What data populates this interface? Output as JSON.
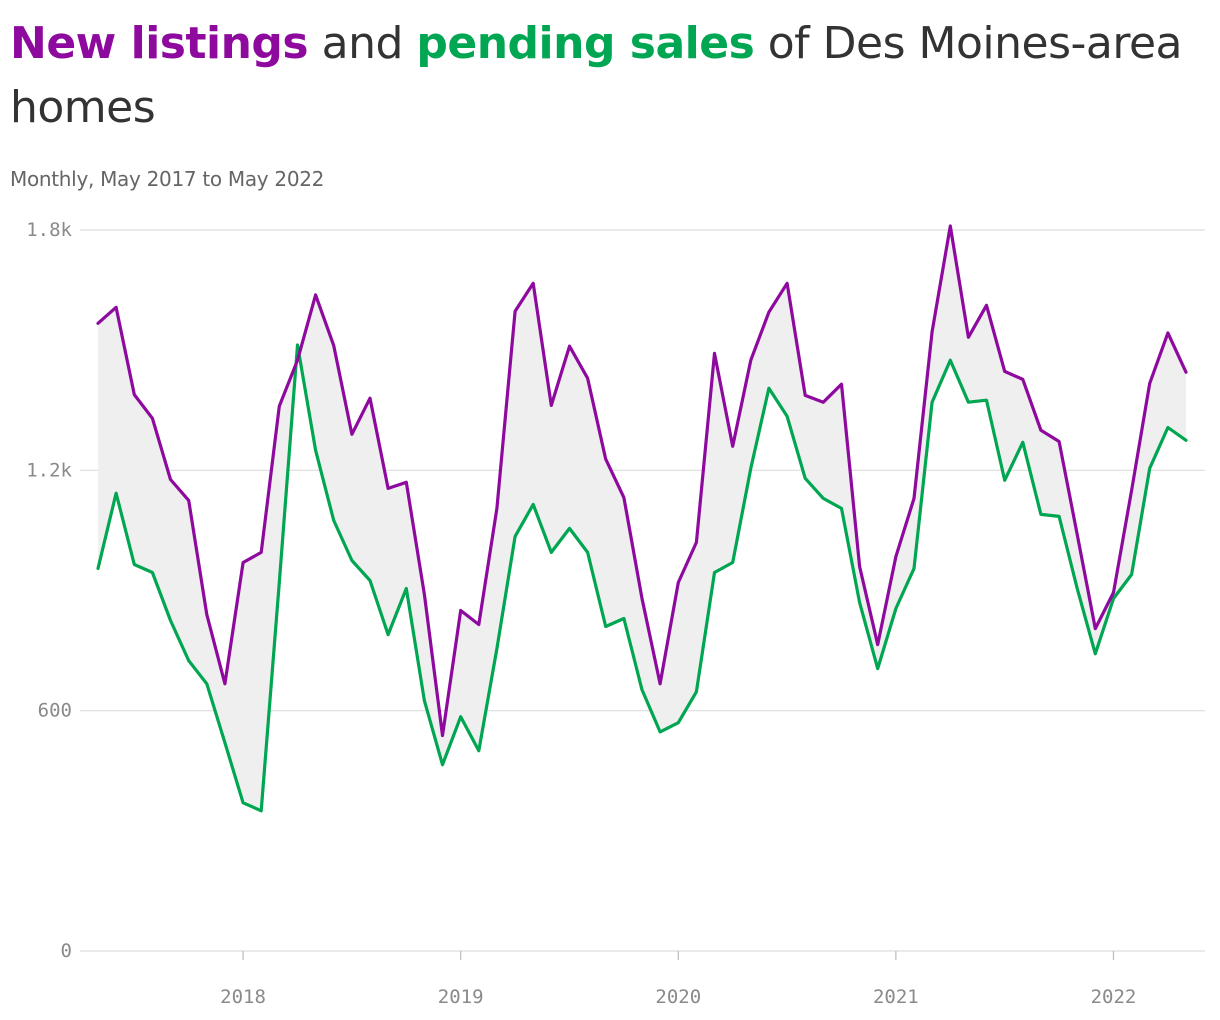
{
  "title": {
    "part1": "New listings",
    "part2": " and ",
    "part3": "pending sales",
    "part4": " of Des Moines-area homes"
  },
  "subtitle": "Monthly, May 2017 to May 2022",
  "colors": {
    "new_listings": "#8e0a9e",
    "pending_sales": "#00a651",
    "fill_between": "#efefef",
    "grid": "#dddddd",
    "text": "#333333"
  },
  "chart_data": {
    "type": "line",
    "title": "New listings and pending sales of Des Moines-area homes",
    "subtitle": "Monthly, May 2017 to May 2022",
    "xlabel": "",
    "ylabel": "",
    "ylim": [
      0,
      1800
    ],
    "yticks": [
      {
        "value": 0,
        "label": "0"
      },
      {
        "value": 600,
        "label": "600"
      },
      {
        "value": 1200,
        "label": "1.2k"
      },
      {
        "value": 1800,
        "label": "1.8k"
      }
    ],
    "xticks": [
      {
        "date": "2018-01",
        "label": "2018"
      },
      {
        "date": "2019-01",
        "label": "2019"
      },
      {
        "date": "2020-01",
        "label": "2020"
      },
      {
        "date": "2021-01",
        "label": "2021"
      },
      {
        "date": "2022-01",
        "label": "2022"
      }
    ],
    "grid": true,
    "legend": "in title",
    "x": [
      "2017-05",
      "2017-06",
      "2017-07",
      "2017-08",
      "2017-09",
      "2017-10",
      "2017-11",
      "2017-12",
      "2018-01",
      "2018-02",
      "2018-03",
      "2018-04",
      "2018-05",
      "2018-06",
      "2018-07",
      "2018-08",
      "2018-09",
      "2018-10",
      "2018-11",
      "2018-12",
      "2019-01",
      "2019-02",
      "2019-03",
      "2019-04",
      "2019-05",
      "2019-06",
      "2019-07",
      "2019-08",
      "2019-09",
      "2019-10",
      "2019-11",
      "2019-12",
      "2020-01",
      "2020-02",
      "2020-03",
      "2020-04",
      "2020-05",
      "2020-06",
      "2020-07",
      "2020-08",
      "2020-09",
      "2020-10",
      "2020-11",
      "2020-12",
      "2021-01",
      "2021-02",
      "2021-03",
      "2021-04",
      "2021-05",
      "2021-06",
      "2021-07",
      "2021-08",
      "2021-09",
      "2021-10",
      "2021-11",
      "2021-12",
      "2022-01",
      "2022-02",
      "2022-03",
      "2022-04",
      "2022-05"
    ],
    "series": [
      {
        "name": "New listings",
        "values": [
          1567,
          1607,
          1389,
          1330,
          1177,
          1125,
          840,
          667,
          970,
          995,
          1360,
          1475,
          1638,
          1512,
          1290,
          1380,
          1155,
          1170,
          890,
          538,
          850,
          815,
          1105,
          1597,
          1667,
          1362,
          1510,
          1430,
          1228,
          1132,
          880,
          667,
          920,
          1020,
          1492,
          1260,
          1475,
          1595,
          1667,
          1387,
          1370,
          1415,
          960,
          765,
          985,
          1130,
          1546,
          1810,
          1532,
          1612,
          1447,
          1427,
          1300,
          1272,
          1040,
          805,
          895,
          1150,
          1417,
          1543,
          1445
        ],
        "color": "#8e0a9e"
      },
      {
        "name": "Pending sales",
        "values": [
          955,
          1143,
          965,
          945,
          825,
          725,
          667,
          520,
          370,
          350,
          920,
          1513,
          1250,
          1075,
          975,
          925,
          790,
          905,
          625,
          465,
          585,
          500,
          755,
          1035,
          1115,
          995,
          1055,
          995,
          810,
          830,
          652,
          547,
          570,
          647,
          945,
          970,
          1205,
          1405,
          1335,
          1180,
          1130,
          1105,
          870,
          705,
          855,
          955,
          1370,
          1475,
          1370,
          1375,
          1175,
          1270,
          1090,
          1085,
          905,
          742,
          880,
          940,
          1205,
          1307,
          1275
        ]
      }
    ]
  }
}
